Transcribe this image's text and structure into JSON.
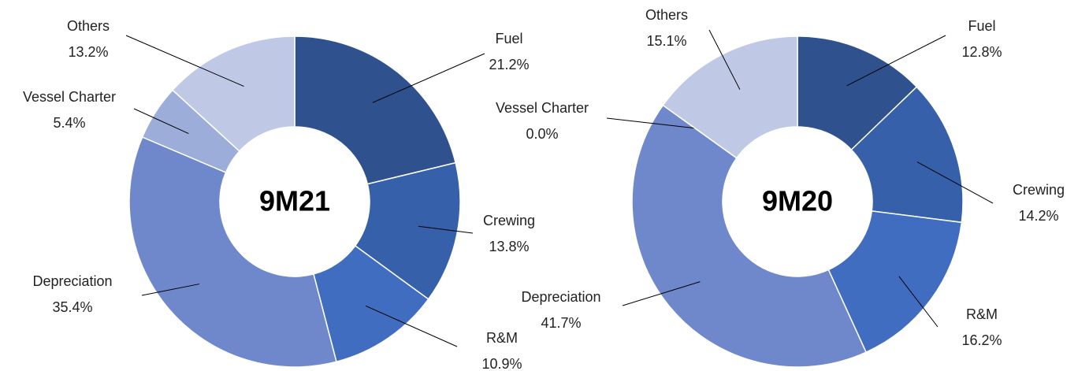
{
  "chart_data": [
    {
      "type": "donut",
      "center_label": "9M21",
      "categories": [
        "Fuel",
        "Crewing",
        "R&M",
        "Depreciation",
        "Vessel Charter",
        "Others"
      ],
      "values": [
        21.2,
        13.8,
        10.9,
        35.4,
        5.4,
        13.2
      ],
      "value_labels": [
        "21.2%",
        "13.8%",
        "10.9%",
        "35.4%",
        "5.4%",
        "13.2%"
      ],
      "colors": [
        "#2f528f",
        "#3760aa",
        "#416dc0",
        "#6e88cb",
        "#9dadd9",
        "#bfc9e6"
      ]
    },
    {
      "type": "donut",
      "center_label": "9M20",
      "categories": [
        "Fuel",
        "Crewing",
        "R&M",
        "Depreciation",
        "Vessel Charter",
        "Others"
      ],
      "values": [
        12.8,
        14.2,
        16.2,
        41.7,
        0.0,
        15.1
      ],
      "value_labels": [
        "12.8%",
        "14.2%",
        "16.2%",
        "41.7%",
        "0.0%",
        "15.1%"
      ],
      "colors": [
        "#2f528f",
        "#3760aa",
        "#416dc0",
        "#6e88cb",
        "#9dadd9",
        "#bfc9e6"
      ]
    }
  ]
}
